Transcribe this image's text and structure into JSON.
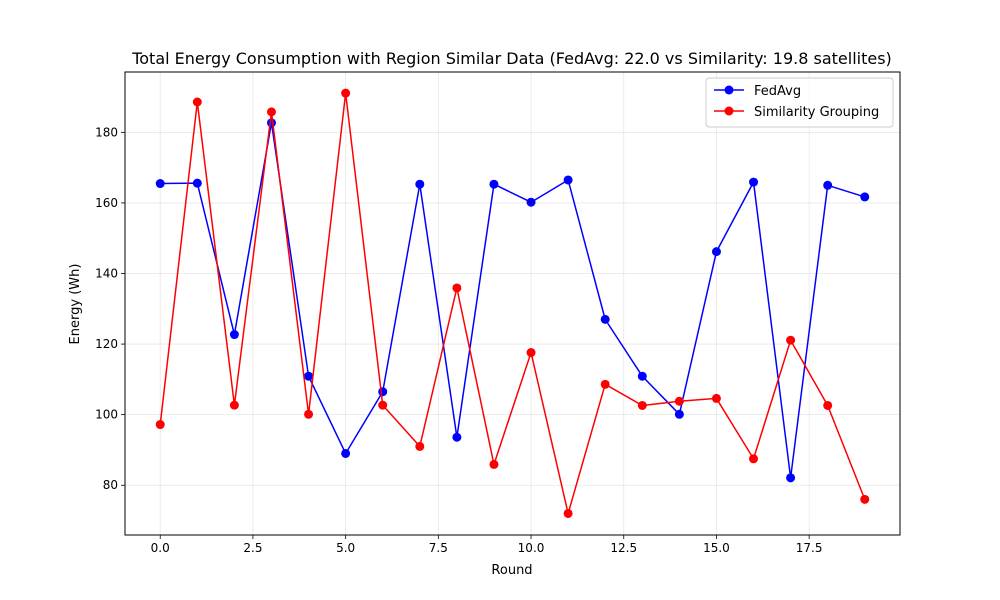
{
  "chart_data": {
    "type": "line",
    "title": "Total Energy Consumption with Region Similar Data (FedAvg: 22.0 vs Similarity: 19.8 satellites)",
    "xlabel": "Round",
    "ylabel": "Energy (Wh)",
    "xlim": [
      -0.95,
      19.95
    ],
    "ylim": [
      65.9,
      197.1
    ],
    "xticks": [
      0.0,
      2.5,
      5.0,
      7.5,
      10.0,
      12.5,
      15.0,
      17.5
    ],
    "xtick_labels": [
      "0.0",
      "2.5",
      "5.0",
      "7.5",
      "10.0",
      "12.5",
      "15.0",
      "17.5"
    ],
    "yticks": [
      80,
      100,
      120,
      140,
      160,
      180
    ],
    "ytick_labels": [
      "80",
      "100",
      "120",
      "140",
      "160",
      "180"
    ],
    "grid": true,
    "legend_position": "top-right",
    "x": [
      0,
      1,
      2,
      3,
      4,
      5,
      6,
      7,
      8,
      9,
      10,
      11,
      12,
      13,
      14,
      15,
      16,
      17,
      18,
      19
    ],
    "series": [
      {
        "name": "FedAvg",
        "color": "#0000ff",
        "marker": "circle",
        "values": [
          165.5,
          165.6,
          122.7,
          182.7,
          110.9,
          89.0,
          106.5,
          165.3,
          93.6,
          165.3,
          160.2,
          166.5,
          127.0,
          110.9,
          100.1,
          146.2,
          165.9,
          82.1,
          165.0,
          161.7
        ]
      },
      {
        "name": "Similarity Grouping",
        "color": "#ff0000",
        "marker": "circle",
        "values": [
          97.2,
          188.6,
          102.7,
          185.8,
          100.1,
          191.1,
          102.7,
          91.0,
          135.9,
          85.9,
          117.6,
          72.0,
          108.6,
          102.6,
          103.8,
          104.6,
          87.5,
          121.1,
          102.6,
          76.0
        ]
      }
    ]
  }
}
